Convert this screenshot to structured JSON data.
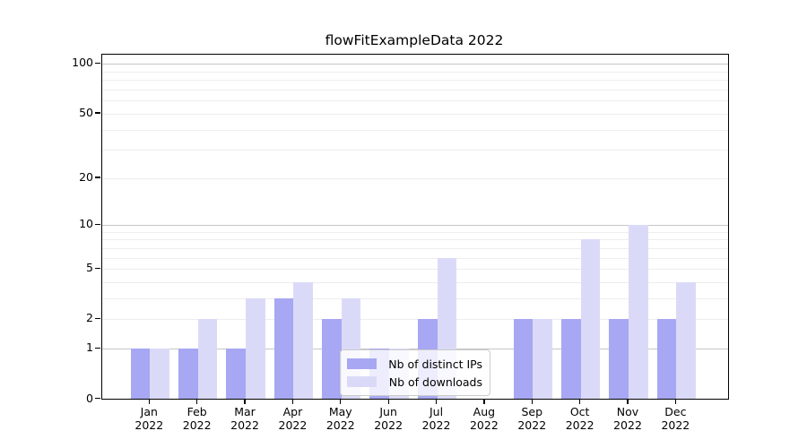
{
  "chart_data": {
    "type": "bar",
    "title": "flowFitExampleData 2022",
    "categories": [
      "Jan",
      "Feb",
      "Mar",
      "Apr",
      "May",
      "Jun",
      "Jul",
      "Aug",
      "Sep",
      "Oct",
      "Nov",
      "Dec"
    ],
    "category_year": "2022",
    "series": [
      {
        "name": "Nb of distinct IPs",
        "color": "#a7a7f3",
        "values": [
          1,
          1,
          1,
          3,
          2,
          1,
          2,
          0,
          2,
          2,
          2,
          2
        ]
      },
      {
        "name": "Nb of downloads",
        "color": "#dadaf8",
        "values": [
          1,
          2,
          3,
          4,
          3,
          1,
          6,
          0,
          2,
          8,
          10,
          4
        ]
      }
    ],
    "y_axis": {
      "scale": "log1p",
      "tick_values": [
        0,
        1,
        2,
        5,
        10,
        20,
        50,
        100
      ],
      "major_gridlines": [
        1,
        10,
        100
      ],
      "minor_gridlines": [
        2,
        3,
        4,
        5,
        6,
        7,
        8,
        9,
        20,
        30,
        40,
        50,
        60,
        70,
        80,
        90
      ],
      "range": [
        0,
        113
      ]
    },
    "x_axis": {
      "label_format": "month-over-year"
    },
    "legend": {
      "position": "lower center"
    },
    "grid": true,
    "colors": {
      "major_grid": "#c6c6c6",
      "minor_grid": "#ededed",
      "axis": "#000000",
      "background": "#ffffff"
    }
  }
}
